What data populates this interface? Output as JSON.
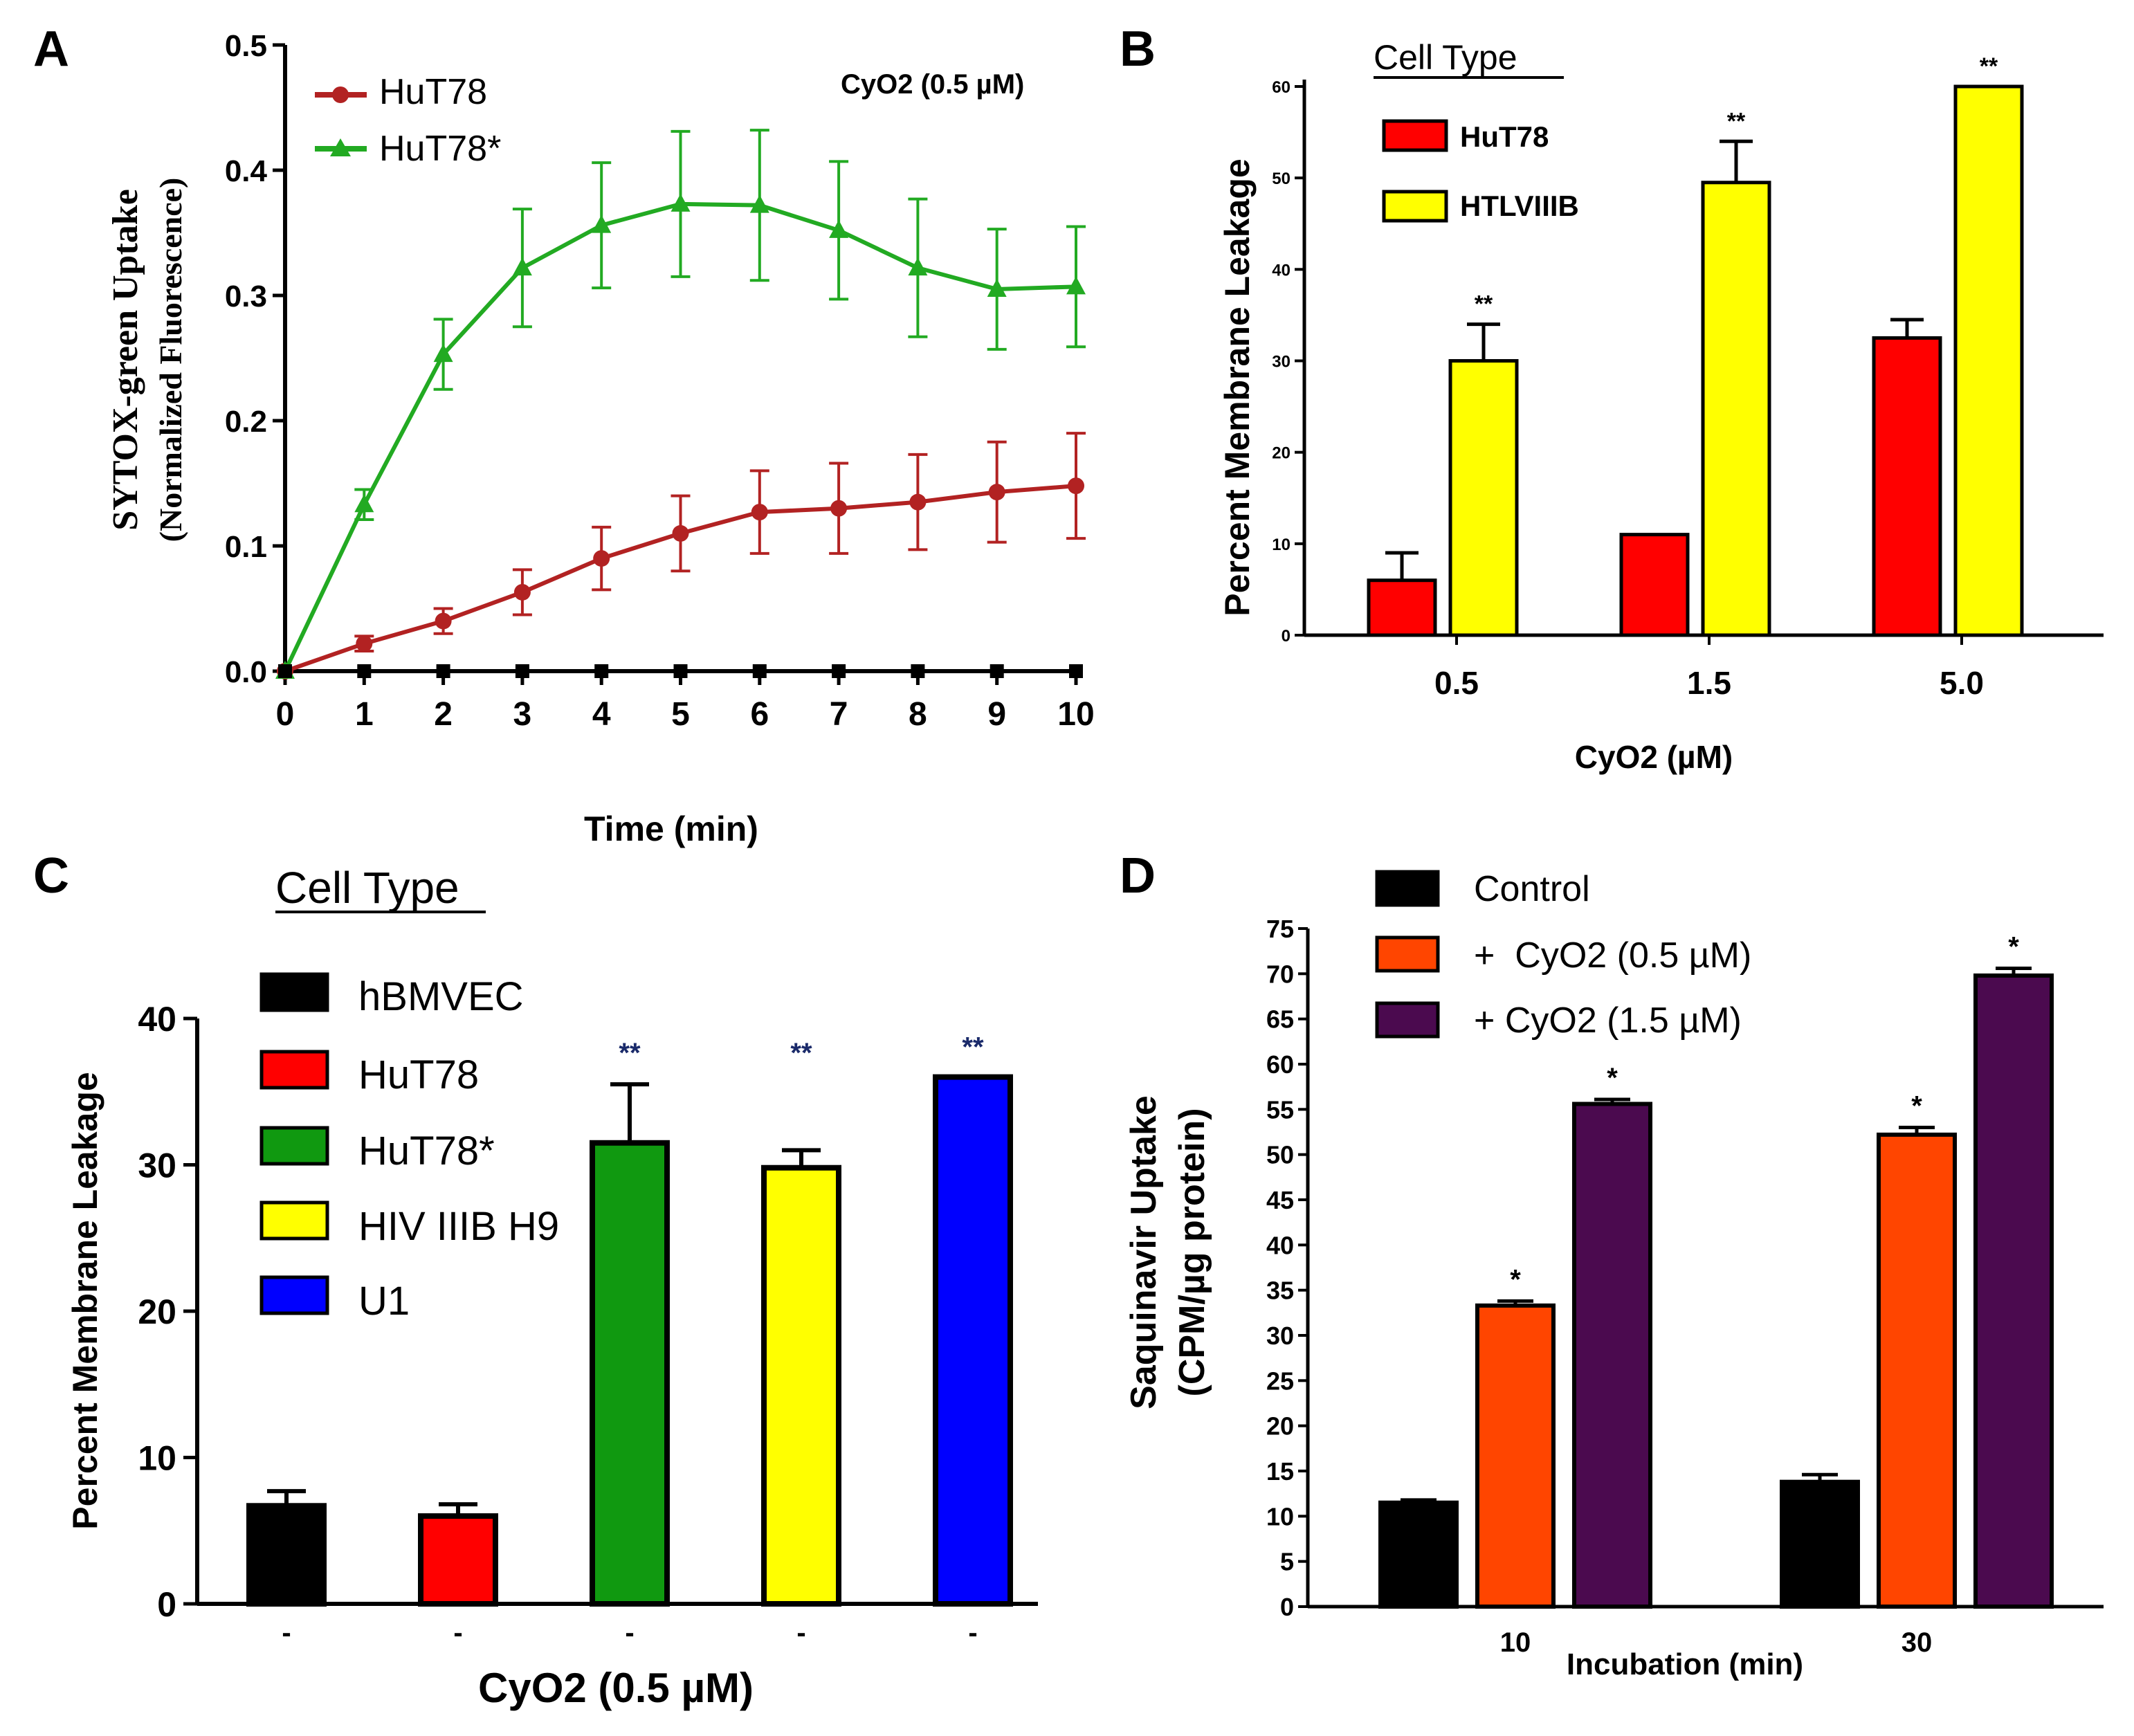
{
  "figure_panels": [
    "A",
    "B",
    "C",
    "D"
  ],
  "colors": {
    "axis": "#000000",
    "hut78_line": "#b22222",
    "hut78star_line": "#22aa22",
    "red_bar": "#ff0000",
    "yellow_bar": "#ffff00",
    "green_bar": "#109910",
    "blue_bar": "#0000ff",
    "black_bar": "#000000",
    "orange_bar": "#ff4500",
    "purple_bar": "#4b0a4f"
  },
  "chart_data": [
    {
      "panel": "A",
      "type": "line",
      "annotation": "CyO2 (0.5 µM)",
      "xlabel": "Time (min)",
      "ylabel": "SYTOX-green Uptake",
      "ylabel2": "(Normalized Fluorescence)",
      "xlim": [
        0,
        10
      ],
      "ylim": [
        0,
        0.5
      ],
      "xticks": [
        "0",
        "1",
        "2",
        "3",
        "4",
        "5",
        "6",
        "7",
        "8",
        "9",
        "10"
      ],
      "yticks": [
        "0.0",
        "0.1",
        "0.2",
        "0.3",
        "0.4",
        "0.5"
      ],
      "x": [
        0,
        1,
        2,
        3,
        4,
        5,
        6,
        7,
        8,
        9,
        10
      ],
      "series": [
        {
          "name": "HuT78",
          "marker": "circle",
          "color": "#b22222",
          "values": [
            0,
            0.022,
            0.04,
            0.063,
            0.09,
            0.11,
            0.127,
            0.13,
            0.135,
            0.143,
            0.148
          ],
          "errors": [
            0,
            0.006,
            0.01,
            0.018,
            0.025,
            0.03,
            0.033,
            0.036,
            0.038,
            0.04,
            0.042
          ]
        },
        {
          "name": "HuT78*",
          "marker": "triangle",
          "color": "#22aa22",
          "values": [
            0,
            0.133,
            0.253,
            0.322,
            0.356,
            0.373,
            0.372,
            0.352,
            0.322,
            0.305,
            0.307
          ],
          "errors": [
            0,
            0.012,
            0.028,
            0.047,
            0.05,
            0.058,
            0.06,
            0.055,
            0.055,
            0.048,
            0.048
          ]
        },
        {
          "name": "baseline",
          "marker": "square",
          "color": "#000000",
          "values": [
            0,
            0,
            0,
            0,
            0,
            0,
            0,
            0,
            0,
            0,
            0
          ]
        }
      ]
    },
    {
      "panel": "B",
      "type": "bar",
      "legend_title": "Cell Type",
      "xlabel": "CyO2 (µM)",
      "ylabel": "Percent Membrane Leakage",
      "ylim": [
        0,
        60
      ],
      "yticks": [
        "0",
        "10",
        "20",
        "30",
        "40",
        "50",
        "60"
      ],
      "categories": [
        "0.5",
        "1.5",
        "5.0"
      ],
      "series": [
        {
          "name": "HuT78",
          "color": "#ff0000",
          "values": [
            6,
            11,
            32.5
          ],
          "errors": [
            3,
            0,
            2
          ]
        },
        {
          "name": "HTLVIIIB",
          "color": "#ffff00",
          "values": [
            30,
            49.5,
            60
          ],
          "errors": [
            4,
            4.5,
            0
          ]
        }
      ],
      "significance": [
        "**",
        "**",
        "**"
      ]
    },
    {
      "panel": "C",
      "type": "bar",
      "legend_title": "Cell Type",
      "xlabel": "CyO2 (0.5 µM)",
      "ylabel": "Percent Membrane Leakage",
      "ylim": [
        0,
        40
      ],
      "yticks": [
        "0",
        "10",
        "20",
        "30",
        "40"
      ],
      "tick_marks": [
        "-",
        "-",
        "-",
        "-",
        "-"
      ],
      "bars": [
        {
          "name": "hBMVEC",
          "color": "#000000",
          "value": 6.7,
          "error": 1.0,
          "sig": ""
        },
        {
          "name": "HuT78",
          "color": "#ff0000",
          "value": 6.0,
          "error": 0.8,
          "sig": ""
        },
        {
          "name": "HuT78*",
          "color": "#109910",
          "value": 31.5,
          "error": 4.0,
          "sig": "**"
        },
        {
          "name": "HIV IIIB H9",
          "color": "#ffff00",
          "value": 29.8,
          "error": 1.2,
          "sig": "**"
        },
        {
          "name": "U1",
          "color": "#0000ff",
          "value": 36.0,
          "error": 0,
          "sig": "**"
        }
      ]
    },
    {
      "panel": "D",
      "type": "bar",
      "xlabel": "Incubation (min)",
      "ylabel": "Saquinavir Uptake",
      "ylabel2": "(CPM/µg protein)",
      "ylim": [
        0,
        75
      ],
      "yticks": [
        "0",
        "5",
        "10",
        "15",
        "20",
        "25",
        "30",
        "35",
        "40",
        "45",
        "50",
        "55",
        "60",
        "65",
        "70",
        "75"
      ],
      "categories": [
        "10",
        "30"
      ],
      "series": [
        {
          "name": "Control",
          "color": "#000000",
          "values": [
            11.5,
            13.8
          ],
          "errors": [
            0.3,
            0.8
          ]
        },
        {
          "name": "+  CyO2 (0.5 µM)",
          "color": "#ff4500",
          "values": [
            33.3,
            52.2
          ],
          "errors": [
            0.5,
            0.8
          ]
        },
        {
          "name": "+ CyO2 (1.5 µM)",
          "color": "#4b0a4f",
          "values": [
            55.6,
            69.8
          ],
          "errors": [
            0.5,
            0.8
          ]
        }
      ],
      "significance": [
        [
          "",
          "*",
          "*"
        ],
        [
          "",
          "*",
          "*"
        ]
      ]
    }
  ]
}
